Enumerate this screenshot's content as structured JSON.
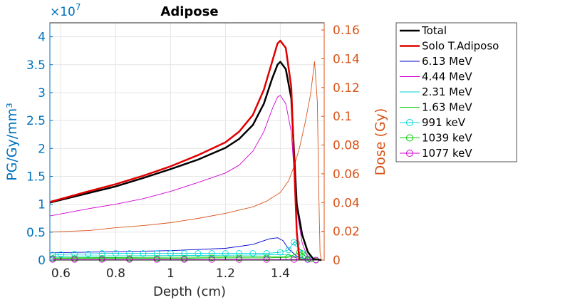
{
  "chart_data": {
    "type": "line",
    "title": "Adipose",
    "xlabel": "Depth (cm)",
    "ylabel_left": "PG/Gy/mm³",
    "ylabel_right": "Dose (Gy)",
    "left_exponent_base": "×10",
    "left_exponent_power": "7",
    "xlim": [
      0.56,
      1.56
    ],
    "ylim_left": [
      0,
      4.25
    ],
    "ylim_right": [
      0,
      0.165
    ],
    "x_ticks": [
      "0.6",
      "0.8",
      "1",
      "1.2",
      "1.4"
    ],
    "x_tick_values": [
      0.6,
      0.8,
      1.0,
      1.2,
      1.4
    ],
    "left_ticks": [
      "0",
      "0.5",
      "1",
      "1.5",
      "2",
      "2.5",
      "3",
      "3.5",
      "4"
    ],
    "left_tick_values": [
      0,
      0.5,
      1,
      1.5,
      2,
      2.5,
      3,
      3.5,
      4
    ],
    "right_ticks": [
      "0",
      "0.02",
      "0.04",
      "0.06",
      "0.08",
      "0.1",
      "0.12",
      "0.14",
      "0.16"
    ],
    "right_tick_values": [
      0,
      0.02,
      0.04,
      0.06,
      0.08,
      0.1,
      0.12,
      0.14,
      0.16
    ],
    "grid": true,
    "legend_position": "outside-right",
    "colors": {
      "left_axis": "#0072BD",
      "right_axis": "#D95319"
    },
    "series": [
      {
        "name": "Total",
        "color": "#000000",
        "width": 2.5,
        "axis": "left",
        "points": [
          [
            0.56,
            1.03
          ],
          [
            0.7,
            1.2
          ],
          [
            0.8,
            1.32
          ],
          [
            0.9,
            1.47
          ],
          [
            1.0,
            1.63
          ],
          [
            1.1,
            1.8
          ],
          [
            1.2,
            2.01
          ],
          [
            1.25,
            2.17
          ],
          [
            1.3,
            2.42
          ],
          [
            1.34,
            2.8
          ],
          [
            1.37,
            3.25
          ],
          [
            1.39,
            3.5
          ],
          [
            1.4,
            3.55
          ],
          [
            1.42,
            3.42
          ],
          [
            1.44,
            2.9
          ],
          [
            1.46,
            1.0
          ],
          [
            1.48,
            0.45
          ],
          [
            1.5,
            0.15
          ],
          [
            1.52,
            0.02
          ],
          [
            1.55,
            0
          ]
        ]
      },
      {
        "name": "Solo T.Adiposo",
        "color": "#E00000",
        "width": 2.5,
        "axis": "left",
        "points": [
          [
            0.56,
            1.04
          ],
          [
            0.7,
            1.23
          ],
          [
            0.8,
            1.36
          ],
          [
            0.9,
            1.51
          ],
          [
            1.0,
            1.68
          ],
          [
            1.1,
            1.88
          ],
          [
            1.2,
            2.11
          ],
          [
            1.25,
            2.3
          ],
          [
            1.3,
            2.6
          ],
          [
            1.34,
            3.05
          ],
          [
            1.37,
            3.55
          ],
          [
            1.39,
            3.88
          ],
          [
            1.4,
            3.93
          ],
          [
            1.42,
            3.8
          ],
          [
            1.44,
            3.1
          ],
          [
            1.46,
            0.5
          ],
          [
            1.47,
            0
          ]
        ]
      },
      {
        "name": "6.13 MeV",
        "color": "#0000CC",
        "width": 0.9,
        "axis": "left",
        "points": [
          [
            0.56,
            0.13
          ],
          [
            0.8,
            0.15
          ],
          [
            1.0,
            0.17
          ],
          [
            1.2,
            0.21
          ],
          [
            1.3,
            0.28
          ],
          [
            1.36,
            0.38
          ],
          [
            1.39,
            0.4
          ],
          [
            1.41,
            0.35
          ],
          [
            1.43,
            0.2
          ],
          [
            1.46,
            0.07
          ],
          [
            1.5,
            0.01
          ],
          [
            1.55,
            0
          ]
        ]
      },
      {
        "name": "4.44 MeV",
        "color": "#D400D4",
        "width": 0.9,
        "axis": "left",
        "points": [
          [
            0.56,
            0.79
          ],
          [
            0.7,
            0.92
          ],
          [
            0.8,
            1.0
          ],
          [
            0.9,
            1.1
          ],
          [
            1.0,
            1.23
          ],
          [
            1.1,
            1.39
          ],
          [
            1.2,
            1.56
          ],
          [
            1.25,
            1.7
          ],
          [
            1.3,
            1.95
          ],
          [
            1.34,
            2.3
          ],
          [
            1.37,
            2.7
          ],
          [
            1.39,
            2.92
          ],
          [
            1.4,
            2.95
          ],
          [
            1.42,
            2.8
          ],
          [
            1.44,
            2.3
          ],
          [
            1.46,
            0.9
          ],
          [
            1.48,
            0.3
          ],
          [
            1.5,
            0.05
          ],
          [
            1.52,
            0
          ]
        ]
      },
      {
        "name": "2.31 MeV",
        "color": "#00D6D6",
        "width": 0.9,
        "axis": "left",
        "points": [
          [
            0.56,
            0.07
          ],
          [
            1.0,
            0.08
          ],
          [
            1.3,
            0.09
          ],
          [
            1.42,
            0.1
          ],
          [
            1.46,
            0.06
          ],
          [
            1.5,
            0.01
          ],
          [
            1.55,
            0
          ]
        ]
      },
      {
        "name": "1.63 MeV",
        "color": "#00C800",
        "width": 0.9,
        "axis": "left",
        "points": [
          [
            0.56,
            0.04
          ],
          [
            1.0,
            0.05
          ],
          [
            1.3,
            0.06
          ],
          [
            1.44,
            0.06
          ],
          [
            1.48,
            0.02
          ],
          [
            1.52,
            0
          ]
        ]
      },
      {
        "name": "991 keV",
        "color": "#00D6D6",
        "width": 0.9,
        "axis": "left",
        "marker": "circle",
        "points": [
          [
            0.57,
            0.09
          ],
          [
            0.6,
            0.1
          ],
          [
            0.65,
            0.11
          ],
          [
            0.7,
            0.11
          ],
          [
            0.75,
            0.12
          ],
          [
            0.8,
            0.12
          ],
          [
            0.85,
            0.12
          ],
          [
            0.9,
            0.12
          ],
          [
            0.95,
            0.12
          ],
          [
            1.0,
            0.12
          ],
          [
            1.05,
            0.12
          ],
          [
            1.1,
            0.12
          ],
          [
            1.15,
            0.12
          ],
          [
            1.2,
            0.12
          ],
          [
            1.25,
            0.12
          ],
          [
            1.3,
            0.12
          ],
          [
            1.35,
            0.12
          ],
          [
            1.4,
            0.14
          ],
          [
            1.43,
            0.18
          ],
          [
            1.45,
            0.32
          ],
          [
            1.46,
            0.3
          ],
          [
            1.48,
            0.12
          ],
          [
            1.5,
            0.02
          ],
          [
            1.53,
            0
          ]
        ]
      },
      {
        "name": "1039 keV",
        "color": "#00C800",
        "width": 0.9,
        "axis": "left",
        "marker": "circle",
        "points": [
          [
            0.57,
            0.03
          ],
          [
            0.65,
            0.03
          ],
          [
            0.75,
            0.03
          ],
          [
            0.85,
            0.03
          ],
          [
            0.95,
            0.03
          ],
          [
            1.05,
            0.03
          ],
          [
            1.15,
            0.04
          ],
          [
            1.25,
            0.04
          ],
          [
            1.35,
            0.04
          ],
          [
            1.43,
            0.05
          ],
          [
            1.47,
            0.14
          ],
          [
            1.49,
            0.08
          ],
          [
            1.51,
            0.02
          ],
          [
            1.53,
            0
          ]
        ]
      },
      {
        "name": "1077 keV",
        "color": "#D400D4",
        "width": 0.9,
        "axis": "left",
        "marker": "circle",
        "points": [
          [
            0.57,
            0.01
          ],
          [
            0.65,
            0.01
          ],
          [
            0.75,
            0.01
          ],
          [
            0.85,
            0.01
          ],
          [
            0.95,
            0.01
          ],
          [
            1.05,
            0.01
          ],
          [
            1.15,
            0.01
          ],
          [
            1.25,
            0.01
          ],
          [
            1.35,
            0.01
          ],
          [
            1.45,
            0.01
          ],
          [
            1.5,
            0.01
          ],
          [
            1.53,
            0
          ]
        ]
      },
      {
        "name": "",
        "color": "#D95319",
        "width": 0.9,
        "axis": "right",
        "show_in_legend": false,
        "points": [
          [
            0.56,
            0.0195
          ],
          [
            0.7,
            0.0205
          ],
          [
            0.8,
            0.0225
          ],
          [
            0.9,
            0.024
          ],
          [
            1.0,
            0.026
          ],
          [
            1.1,
            0.029
          ],
          [
            1.2,
            0.0325
          ],
          [
            1.3,
            0.037
          ],
          [
            1.35,
            0.041
          ],
          [
            1.4,
            0.047
          ],
          [
            1.43,
            0.055
          ],
          [
            1.45,
            0.065
          ],
          [
            1.47,
            0.078
          ],
          [
            1.49,
            0.095
          ],
          [
            1.51,
            0.115
          ],
          [
            1.525,
            0.138
          ],
          [
            1.535,
            0.11
          ],
          [
            1.54,
            0.05
          ],
          [
            1.545,
            0.005
          ],
          [
            1.55,
            0
          ]
        ]
      }
    ]
  }
}
